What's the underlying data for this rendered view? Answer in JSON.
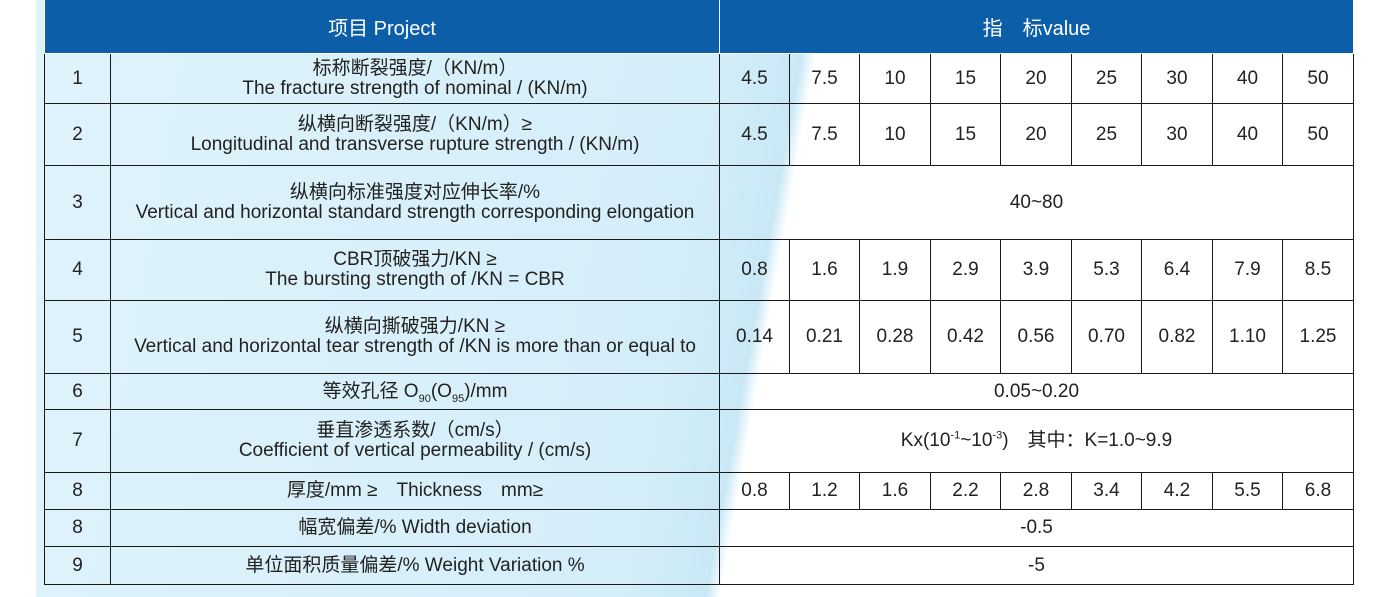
{
  "header": {
    "project": "项目 Project",
    "value": "指　标value"
  },
  "rows": [
    {
      "num": "1",
      "zh": "标称断裂强度/（KN/m）",
      "en": "The fracture strength of nominal / (KN/m)",
      "values": [
        "4.5",
        "7.5",
        "10",
        "15",
        "20",
        "25",
        "30",
        "40",
        "50"
      ]
    },
    {
      "num": "2",
      "zh": "纵横向断裂强度/（KN/m）≥",
      "en": "Longitudinal and transverse rupture strength / (KN/m)",
      "values": [
        "4.5",
        "7.5",
        "10",
        "15",
        "20",
        "25",
        "30",
        "40",
        "50"
      ]
    },
    {
      "num": "3",
      "zh": "纵横向标准强度对应伸长率/%",
      "en": "Vertical and horizontal standard strength corresponding elongation",
      "span_value": "40~80"
    },
    {
      "num": "4",
      "zh": "CBR顶破强力/KN ≥",
      "en": "The bursting strength of /KN = CBR",
      "values": [
        "0.8",
        "1.6",
        "1.9",
        "2.9",
        "3.9",
        "5.3",
        "6.4",
        "7.9",
        "8.5"
      ]
    },
    {
      "num": "5",
      "zh": "纵横向撕破强力/KN ≥",
      "en": "Vertical and horizontal tear strength of /KN is more than or equal to",
      "values": [
        "0.14",
        "0.21",
        "0.28",
        "0.42",
        "0.56",
        "0.70",
        "0.82",
        "1.10",
        "1.25"
      ]
    },
    {
      "num": "6",
      "label_prefix": "等效孔径 O",
      "sub1": "90",
      "label_mid": "(O",
      "sub2": "95",
      "label_suffix": ")/mm",
      "span_value": "0.05~0.20"
    },
    {
      "num": "7",
      "zh": "垂直渗透系数/（cm/s）",
      "en": "Coefficient of vertical permeability / (cm/s)",
      "span_prefix": "Kx(10",
      "sup1": "-1",
      "span_mid": "~10",
      "sup2": "-3",
      "span_suffix": ")　其中：K=1.0~9.9"
    },
    {
      "num": "8",
      "label": "厚度/mm ≥　Thickness　mm≥",
      "values": [
        "0.8",
        "1.2",
        "1.6",
        "2.2",
        "2.8",
        "3.4",
        "4.2",
        "5.5",
        "6.8"
      ]
    },
    {
      "num": "8",
      "label": "幅宽偏差/%  Width deviation",
      "span_value": "-0.5"
    },
    {
      "num": "9",
      "label": "单位面积质量偏差/%  Weight Variation %",
      "span_value": "-5"
    }
  ]
}
